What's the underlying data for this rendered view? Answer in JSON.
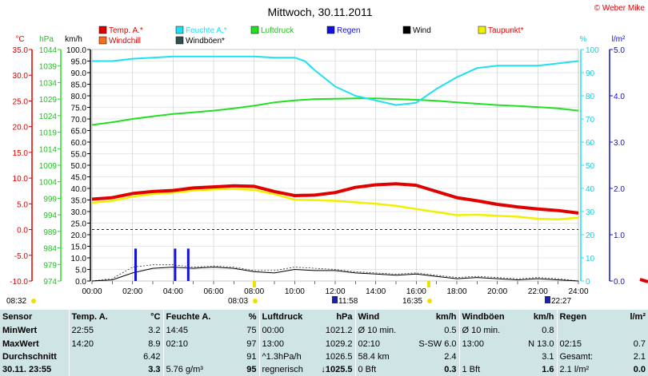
{
  "title": "Mittwoch, 30.11.2011",
  "credit": "© Weber Mike",
  "unit_labels": {
    "temp": "°C",
    "hpa": "hPa",
    "kmh": "km/h",
    "pct": "%",
    "lm2": "l/m²"
  },
  "legend": [
    {
      "label": "Temp. A.*",
      "color": "#e00000",
      "label_color": "#e00000"
    },
    {
      "label": "Feuchte A.*",
      "color": "#20e0f0",
      "label_color": "#20e0f0"
    },
    {
      "label": "Luftdruck",
      "color": "#20e020",
      "label_color": "#20c020"
    },
    {
      "label": "Regen",
      "color": "#1010e0",
      "label_color": "#1010e0"
    },
    {
      "label": "Wind",
      "color": "#000000",
      "label_color": "#000000"
    },
    {
      "label": "Taupunkt*",
      "color": "#f0f000",
      "label_color": "#e00000"
    },
    {
      "label": "Windchill",
      "color": "#f07020",
      "label_color": "#e00000"
    },
    {
      "label": "Windböen*",
      "color": "#305050",
      "label_color": "#000000"
    }
  ],
  "event_labels": [
    {
      "time": "08:32",
      "icon": "sunrise"
    },
    {
      "time": "08:03",
      "icon": "sunrise"
    },
    {
      "time": "11:58",
      "icon": "moon"
    },
    {
      "time": "16:35",
      "icon": "sunset"
    },
    {
      "time": "22:27",
      "icon": "moon"
    }
  ],
  "chart_data": {
    "type": "line",
    "x_unit": "hour",
    "x_ticks": [
      "00:00",
      "02:00",
      "04:00",
      "06:00",
      "08:00",
      "10:00",
      "12:00",
      "14:00",
      "16:00",
      "18:00",
      "20:00",
      "22:00",
      "24:00"
    ],
    "axes": {
      "temp_c": {
        "ticks": [
          "35.0",
          "30.0",
          "25.0",
          "20.0",
          "15.0",
          "10.0",
          "5.0",
          "0.0",
          "-5.0",
          "-10.0"
        ],
        "range": [
          -10,
          35
        ]
      },
      "pressure_hpa": {
        "ticks": [
          "1044",
          "1039",
          "1034",
          "1029",
          "1024",
          "1019",
          "1014",
          "1009",
          "1004",
          "999",
          "994",
          "989",
          "984",
          "979",
          "974"
        ],
        "range": [
          974,
          1044
        ]
      },
      "speed_kmh": {
        "ticks": [
          "100.0",
          "95.0",
          "90.0",
          "85.0",
          "80.0",
          "75.0",
          "70.0",
          "65.0",
          "60.0",
          "55.0",
          "50.0",
          "45.0",
          "40.0",
          "35.0",
          "30.0",
          "25.0",
          "20.0",
          "15.0",
          "10.0",
          "5.0",
          "0.0"
        ],
        "range": [
          0,
          100
        ]
      },
      "humidity_pct": {
        "ticks": [
          "100",
          "90",
          "80",
          "70",
          "60",
          "50",
          "40",
          "30",
          "20",
          "10",
          "0"
        ],
        "range": [
          0,
          100
        ]
      },
      "rain_lm2": {
        "ticks": [
          "5.0",
          "4.0",
          "3.0",
          "2.0",
          "1.0",
          "0.0"
        ],
        "range": [
          0,
          5
        ]
      }
    },
    "zero_line_c": 0,
    "series": [
      {
        "name": "Temp. A.*",
        "axis": "temp_c",
        "x": [
          0,
          1,
          2,
          3,
          4,
          5,
          6,
          7,
          8,
          9,
          10,
          11,
          12,
          13,
          14,
          15,
          16,
          17,
          18,
          19,
          20,
          21,
          22,
          23,
          24
        ],
        "y": [
          5.9,
          6.2,
          7.0,
          7.4,
          7.6,
          8.1,
          8.3,
          8.5,
          8.4,
          7.4,
          6.6,
          6.7,
          7.2,
          8.2,
          8.7,
          8.9,
          8.6,
          7.4,
          6.2,
          5.6,
          4.9,
          4.4,
          4.0,
          3.7,
          3.2
        ]
      },
      {
        "name": "Taupunkt*",
        "axis": "temp_c",
        "x": [
          0,
          1,
          2,
          3,
          4,
          5,
          6,
          7,
          8,
          9,
          10,
          11,
          12,
          13,
          14,
          15,
          16,
          17,
          18,
          19,
          20,
          21,
          22,
          23,
          24
        ],
        "y": [
          5.2,
          5.6,
          6.4,
          6.9,
          7.2,
          7.6,
          7.8,
          7.9,
          7.7,
          6.9,
          5.8,
          5.7,
          5.6,
          5.3,
          5.0,
          4.6,
          4.0,
          3.4,
          2.8,
          2.9,
          2.7,
          2.5,
          2.1,
          2.0,
          2.3
        ]
      },
      {
        "name": "Feuchte A.*",
        "axis": "humidity_pct",
        "x": [
          0,
          1,
          2,
          3,
          4,
          5,
          6,
          7,
          8,
          9,
          10,
          10.5,
          11,
          12,
          13,
          14,
          15,
          16,
          17,
          18,
          19,
          20,
          21,
          22,
          23,
          24
        ],
        "y": [
          95,
          95,
          96,
          96.5,
          97,
          97,
          97,
          97,
          97,
          96.5,
          96.5,
          95,
          91,
          84,
          80,
          78,
          76,
          77,
          83,
          88,
          92,
          93,
          93,
          93,
          94,
          95
        ]
      },
      {
        "name": "Luftdruck",
        "axis": "pressure_hpa",
        "x": [
          0,
          1,
          2,
          3,
          4,
          5,
          6,
          7,
          8,
          9,
          10,
          11,
          12,
          13,
          14,
          15,
          16,
          17,
          18,
          19,
          20,
          21,
          22,
          23,
          24
        ],
        "y": [
          1021.2,
          1022.0,
          1023.0,
          1023.8,
          1024.5,
          1025.0,
          1025.5,
          1026.2,
          1027.0,
          1028.0,
          1028.6,
          1029.0,
          1029.1,
          1029.2,
          1029.2,
          1029.0,
          1028.8,
          1028.5,
          1028.0,
          1027.6,
          1027.2,
          1026.9,
          1026.6,
          1026.2,
          1025.5
        ]
      },
      {
        "name": "Wind",
        "axis": "speed_kmh",
        "x": [
          0,
          1,
          2,
          3,
          4,
          5,
          6,
          7,
          8,
          9,
          10,
          11,
          12,
          13,
          14,
          15,
          16,
          17,
          18,
          19,
          20,
          21,
          22,
          23,
          24
        ],
        "y": [
          0,
          0.5,
          3.5,
          5.5,
          6.0,
          5.5,
          6.0,
          5.5,
          4.0,
          3.5,
          5.0,
          4.5,
          4.5,
          3.5,
          3.0,
          2.5,
          3.0,
          2.0,
          1.0,
          1.5,
          1.0,
          0.5,
          1.0,
          0.5,
          0
        ]
      },
      {
        "name": "Windböen*",
        "axis": "speed_kmh",
        "x": [
          0,
          1,
          2,
          3,
          4,
          5,
          6,
          7,
          8,
          9,
          10,
          11,
          12,
          13,
          14,
          15,
          16,
          17,
          18,
          19,
          20,
          21,
          22,
          23,
          24
        ],
        "y": [
          0,
          1.0,
          6.0,
          7.0,
          7.0,
          6.0,
          6.5,
          6.0,
          4.5,
          4.5,
          6.0,
          5.5,
          5.0,
          4.0,
          3.5,
          3.0,
          3.5,
          2.5,
          1.5,
          2.0,
          1.5,
          1.0,
          1.5,
          1.0,
          0
        ]
      },
      {
        "name": "Regen",
        "axis": "rain_lm2",
        "type": "bar",
        "x": [
          2.15,
          4.1,
          4.75
        ],
        "y": [
          0.7,
          0.7,
          0.7
        ]
      }
    ]
  },
  "stats": {
    "header": [
      "Sensor",
      "Temp. A.",
      "°C",
      "Feuchte A.",
      "%",
      "Luftdruck",
      "hPa",
      "Wind",
      "km/h",
      "Windböen",
      "km/h",
      "Regen",
      "l/m²"
    ],
    "rows": [
      {
        "cells": [
          "MinWert",
          "22:55",
          "3.2",
          "14:45",
          "75",
          "00:00",
          "1021.2",
          "Ø 10 min.",
          "0.5",
          "Ø 10 min.",
          "0.8",
          "",
          ""
        ]
      },
      {
        "cells": [
          "MaxWert",
          "14:20",
          "8.9",
          "02:10",
          "97",
          "13:00",
          "1029.2",
          "02:10",
          "S-SW 6.0",
          "13:00",
          "N 13.0",
          "02:15",
          "0.7"
        ]
      },
      {
        "cells": [
          "Durchschnitt",
          "",
          "6.42",
          "",
          "91",
          "^1.3hPa/h",
          "1026.5",
          "58.4 km",
          "2.4",
          "",
          "3.1",
          "Gesamt:",
          "2.1"
        ]
      },
      {
        "cells": [
          "30.11. 23:55",
          "",
          "3.3",
          "5.76 g/m³",
          "95",
          "regnerisch",
          "↓1025.5",
          "0 Bft",
          "0.3",
          "1 Bft",
          "1.6",
          "2.1 l/m²",
          "0.0"
        ]
      }
    ]
  }
}
